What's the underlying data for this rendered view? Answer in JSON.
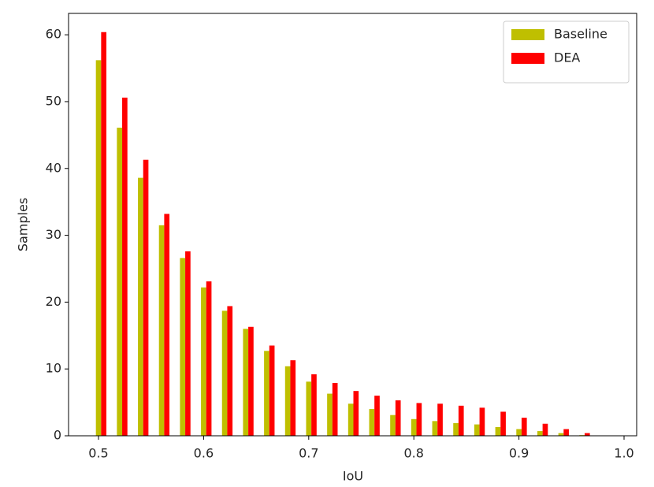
{
  "chart_data": {
    "type": "bar",
    "x_label": "IoU",
    "y_label": "Samples",
    "x": [
      0.5,
      0.52,
      0.54,
      0.56,
      0.58,
      0.6,
      0.62,
      0.64,
      0.66,
      0.68,
      0.7,
      0.72,
      0.74,
      0.76,
      0.78,
      0.8,
      0.82,
      0.84,
      0.86,
      0.88,
      0.9,
      0.92,
      0.94,
      0.96
    ],
    "series": [
      {
        "name": "Baseline",
        "color": "#bfbf00",
        "values": [
          56.2,
          46.1,
          38.6,
          31.5,
          26.6,
          22.2,
          18.7,
          16.0,
          12.7,
          10.4,
          8.1,
          6.3,
          4.8,
          4.0,
          3.1,
          2.5,
          2.2,
          1.9,
          1.7,
          1.3,
          1.0,
          0.7,
          0.4,
          0.1
        ]
      },
      {
        "name": "DEA",
        "color": "#ff0000",
        "values": [
          60.4,
          50.6,
          41.3,
          33.2,
          27.6,
          23.1,
          19.4,
          16.3,
          13.5,
          11.3,
          9.2,
          7.9,
          6.7,
          6.0,
          5.3,
          4.9,
          4.8,
          4.5,
          4.2,
          3.6,
          2.7,
          1.8,
          1.0,
          0.4
        ]
      }
    ],
    "xlim": [
      0.4715,
      1.012
    ],
    "xticks": [
      0.5,
      0.6,
      0.7,
      0.8,
      0.9,
      {
        "value": 1.0,
        "label": "1.0"
      }
    ],
    "ylim": [
      0,
      63.2
    ],
    "yticks": [
      0,
      10,
      20,
      30,
      40,
      50,
      60
    ],
    "legend": "upper right"
  }
}
